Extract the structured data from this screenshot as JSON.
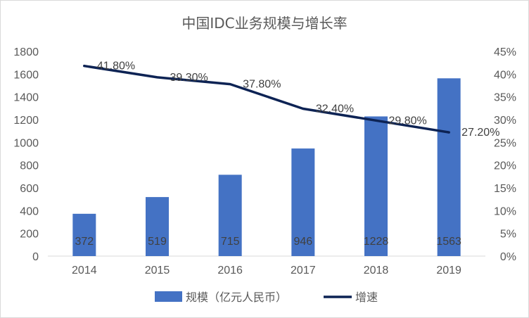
{
  "chart_data": {
    "type": "bar",
    "title": "中国IDC业务规模与增长率",
    "categories": [
      "2014",
      "2015",
      "2016",
      "2017",
      "2018",
      "2019"
    ],
    "series": [
      {
        "name": "规模（亿元人民币）",
        "type": "bar",
        "axis": "left",
        "values": [
          372,
          519,
          715,
          946,
          1228,
          1563
        ],
        "labels": [
          "372",
          "519",
          "715",
          "946",
          "1228",
          "1563"
        ],
        "color": "#4472c4"
      },
      {
        "name": "增速",
        "type": "line",
        "axis": "right",
        "values": [
          41.8,
          39.3,
          37.8,
          32.4,
          29.8,
          27.2
        ],
        "labels": [
          "41.80%",
          "39.30%",
          "37.80%",
          "32.40%",
          "29.80%",
          "27.20%"
        ],
        "color": "#0d2354"
      }
    ],
    "y_left": {
      "ylim": [
        0,
        1800
      ],
      "ticks": [
        "0",
        "200",
        "400",
        "600",
        "800",
        "1000",
        "1200",
        "1400",
        "1600",
        "1800"
      ]
    },
    "y_right": {
      "ylim": [
        0,
        45
      ],
      "ticks": [
        "0%",
        "5%",
        "10%",
        "15%",
        "20%",
        "25%",
        "30%",
        "35%",
        "40%",
        "45%"
      ]
    },
    "grid": false,
    "legend_position": "bottom"
  }
}
